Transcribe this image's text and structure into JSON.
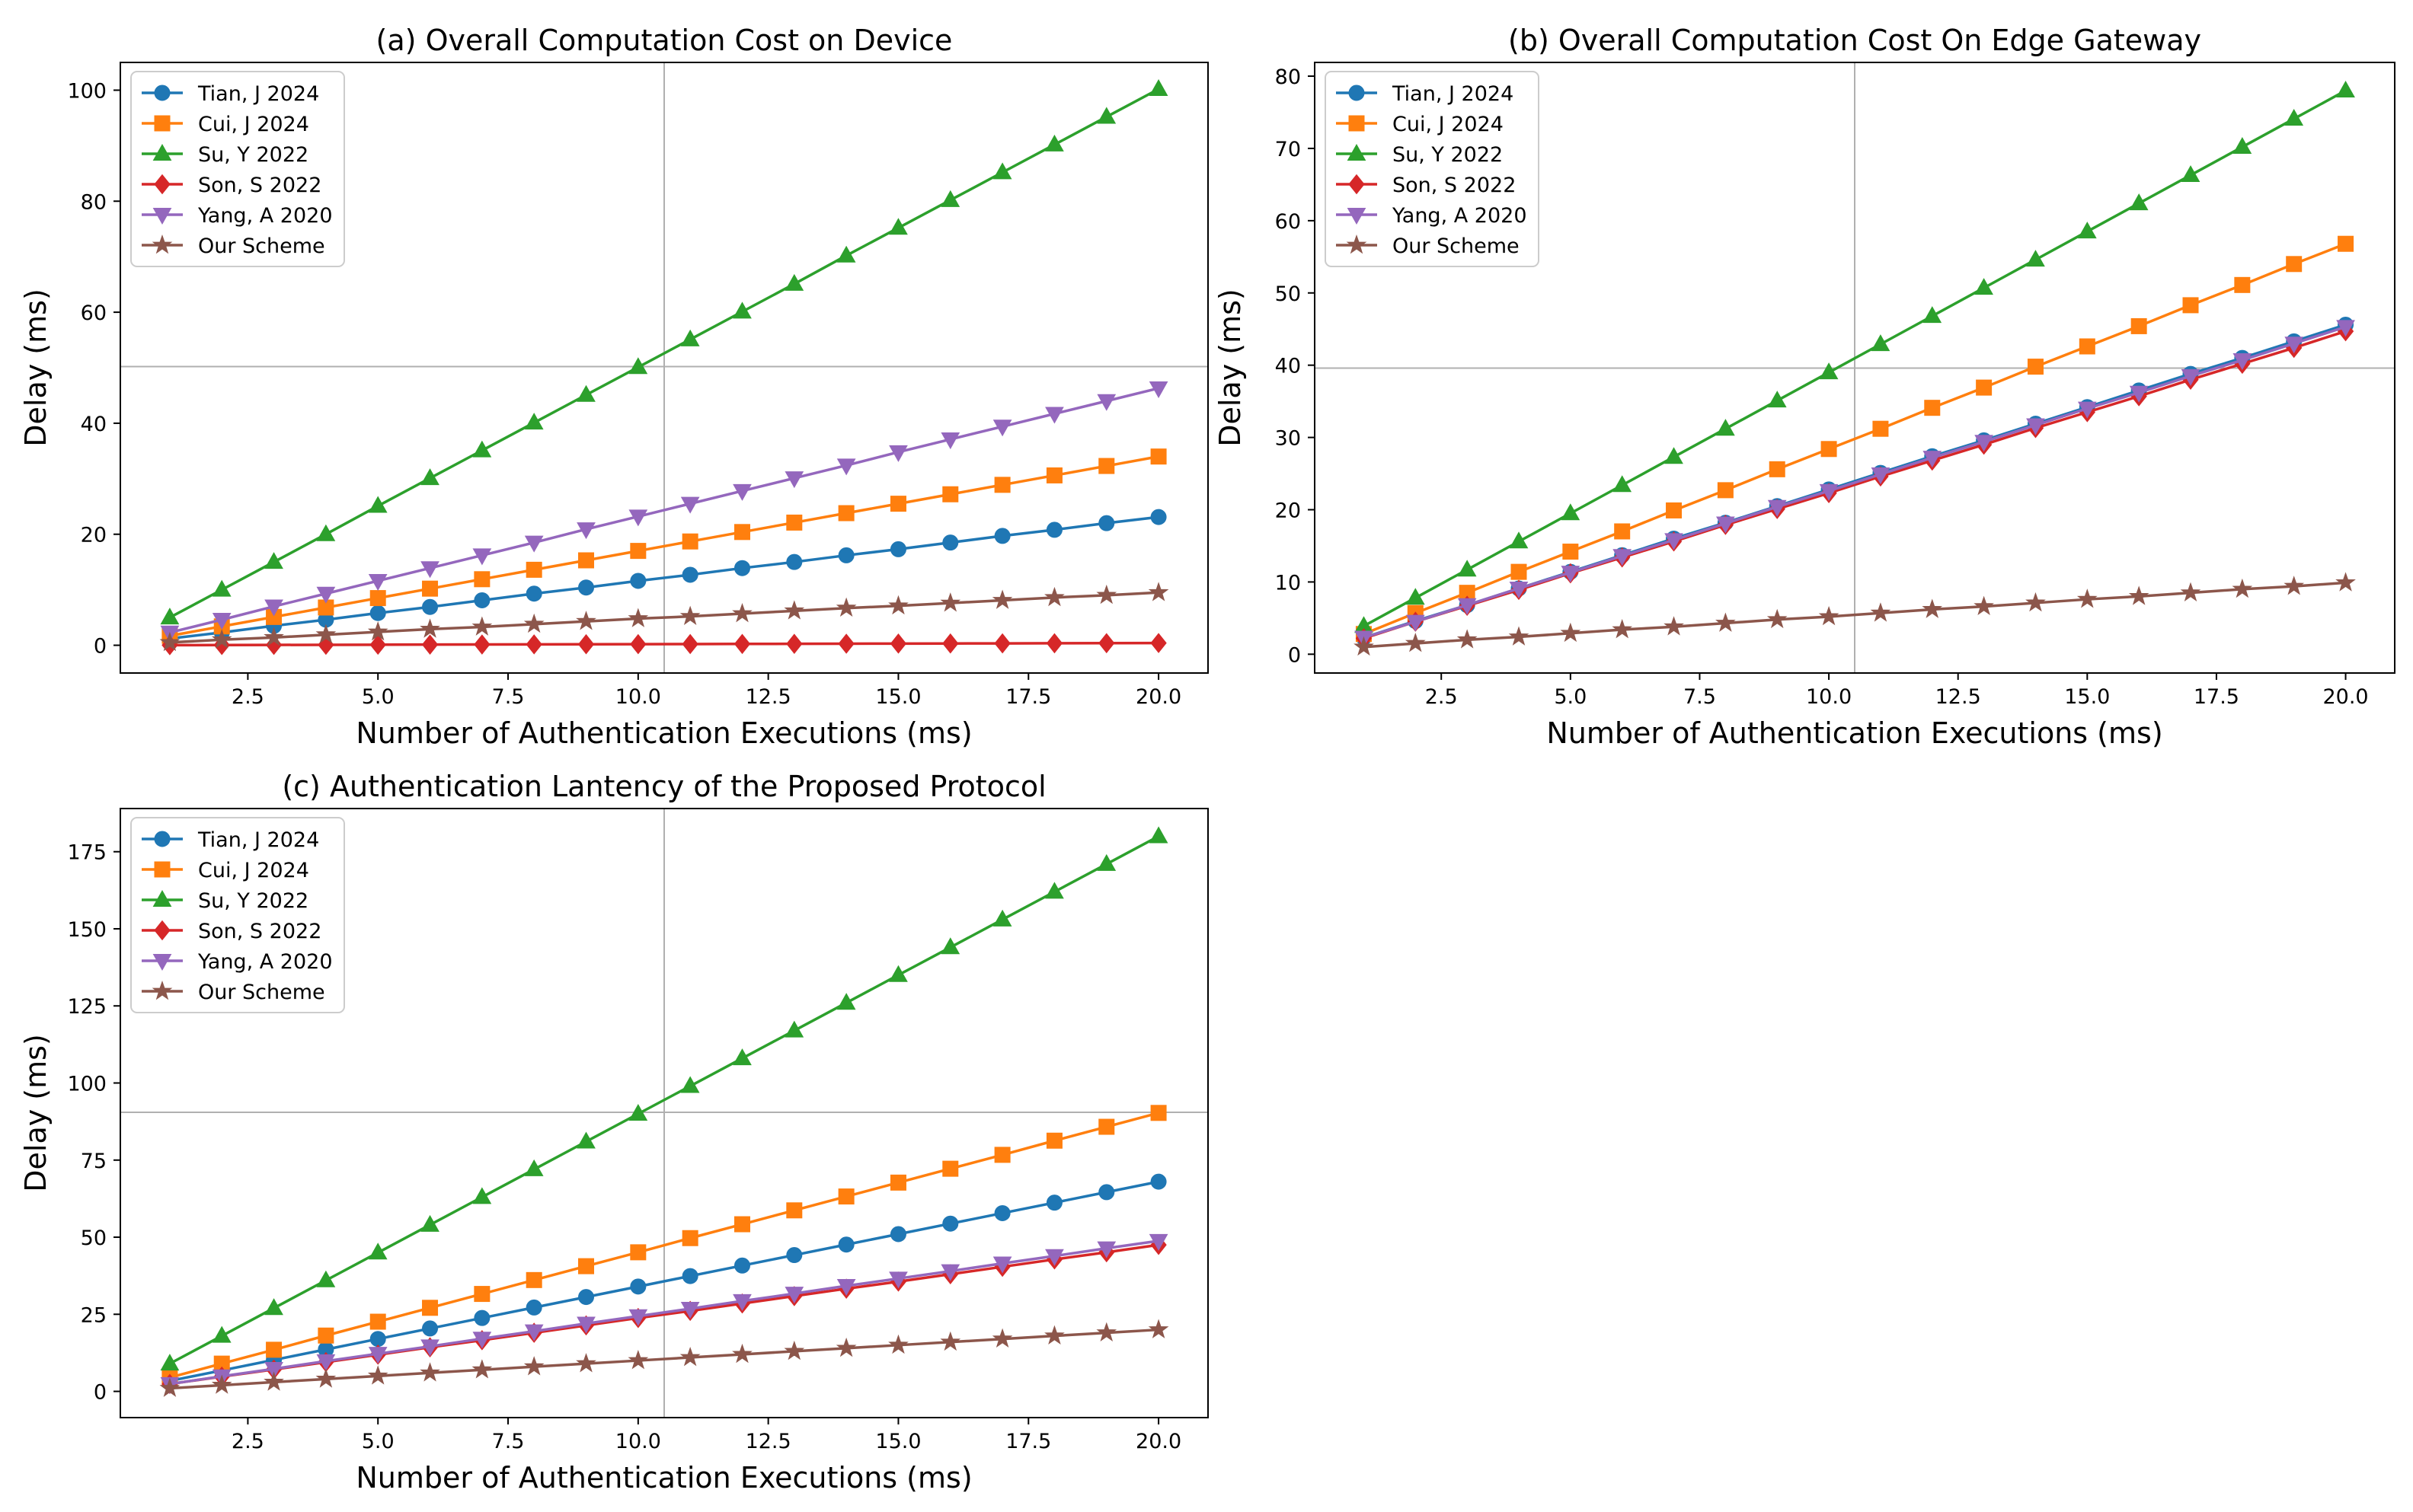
{
  "figure": {
    "layout": "2x2 grid, bottom-right empty"
  },
  "styles": {
    "Tian, J 2024": {
      "color": "#1f77b4",
      "marker": "circle"
    },
    "Cui, J 2024": {
      "color": "#ff7f0e",
      "marker": "square"
    },
    "Su, Y 2022": {
      "color": "#2ca02c",
      "marker": "triangle-up"
    },
    "Son, S 2022": {
      "color": "#d62728",
      "marker": "diamond"
    },
    "Yang, A 2020": {
      "color": "#9467bd",
      "marker": "triangle-down"
    },
    "Our Scheme": {
      "color": "#8c564b",
      "marker": "star"
    }
  },
  "chart_data": [
    {
      "type": "line",
      "title": "(a) Overall Computation Cost on Device",
      "xlabel": "Number of Authentication Executions (ms)",
      "ylabel": "Delay (ms)",
      "xlim": [
        0.05,
        20.95
      ],
      "ylim": [
        -5,
        105
      ],
      "xticks": [
        2.5,
        5.0,
        7.5,
        10.0,
        12.5,
        15.0,
        17.5,
        20.0
      ],
      "xtick_labels": [
        "2.5",
        "5.0",
        "7.5",
        "10.0",
        "12.5",
        "15.0",
        "17.5",
        "20.0"
      ],
      "yticks": [
        0,
        20,
        40,
        60,
        80,
        100
      ],
      "ytick_labels": [
        "0",
        "20",
        "40",
        "60",
        "80",
        "100"
      ],
      "crosshair": {
        "x": 10.5,
        "y": 50.2
      },
      "legend": "top-left",
      "x": [
        1,
        2,
        3,
        4,
        5,
        6,
        7,
        8,
        9,
        10,
        11,
        12,
        13,
        14,
        15,
        16,
        17,
        18,
        19,
        20
      ],
      "series": [
        {
          "name": "Tian, J 2024",
          "values": [
            1.2,
            2.3,
            3.5,
            4.6,
            5.8,
            6.9,
            8.1,
            9.3,
            10.4,
            11.6,
            12.7,
            13.9,
            15.0,
            16.2,
            17.3,
            18.5,
            19.7,
            20.8,
            22.0,
            23.1
          ]
        },
        {
          "name": "Cui, J 2024",
          "values": [
            1.7,
            3.4,
            5.1,
            6.8,
            8.5,
            10.2,
            11.9,
            13.6,
            15.3,
            17.0,
            18.7,
            20.4,
            22.1,
            23.8,
            25.5,
            27.2,
            28.9,
            30.6,
            32.3,
            34.0
          ]
        },
        {
          "name": "Su, Y 2022",
          "values": [
            5.0,
            10.0,
            15.0,
            20.0,
            25.1,
            30.1,
            35.1,
            40.1,
            45.1,
            50.1,
            55.1,
            60.1,
            65.1,
            70.2,
            75.2,
            80.2,
            85.2,
            90.2,
            95.2,
            100.2
          ]
        },
        {
          "name": "Son, S 2022",
          "values": [
            0.02,
            0.04,
            0.06,
            0.08,
            0.1,
            0.12,
            0.14,
            0.16,
            0.18,
            0.2,
            0.22,
            0.24,
            0.26,
            0.28,
            0.3,
            0.32,
            0.34,
            0.36,
            0.38,
            0.4
          ]
        },
        {
          "name": "Yang, A 2020",
          "values": [
            2.3,
            4.6,
            7.0,
            9.3,
            11.6,
            13.9,
            16.2,
            18.5,
            20.9,
            23.2,
            25.5,
            27.8,
            30.1,
            32.4,
            34.8,
            37.1,
            39.4,
            41.7,
            44.0,
            46.3
          ]
        },
        {
          "name": "Our Scheme",
          "values": [
            0.5,
            1.0,
            1.4,
            1.9,
            2.4,
            2.9,
            3.3,
            3.8,
            4.3,
            4.8,
            5.2,
            5.7,
            6.2,
            6.7,
            7.1,
            7.6,
            8.1,
            8.6,
            9.0,
            9.5
          ]
        }
      ]
    },
    {
      "type": "line",
      "title": "(b) Overall Computation Cost On Edge Gateway",
      "xlabel": "Number of Authentication Executions (ms)",
      "ylabel": "Delay (ms)",
      "xlim": [
        0.05,
        20.95
      ],
      "ylim": [
        -2.6,
        81.9
      ],
      "xticks": [
        2.5,
        5.0,
        7.5,
        10.0,
        12.5,
        15.0,
        17.5,
        20.0
      ],
      "xtick_labels": [
        "2.5",
        "5.0",
        "7.5",
        "10.0",
        "12.5",
        "15.0",
        "17.5",
        "20.0"
      ],
      "yticks": [
        0,
        10,
        20,
        30,
        40,
        50,
        60,
        70,
        80
      ],
      "ytick_labels": [
        "0",
        "10",
        "20",
        "30",
        "40",
        "50",
        "60",
        "70",
        "80"
      ],
      "crosshair": {
        "x": 10.5,
        "y": 39.6
      },
      "legend": "top-left",
      "x": [
        1,
        2,
        3,
        4,
        5,
        6,
        7,
        8,
        9,
        10,
        11,
        12,
        13,
        14,
        15,
        16,
        17,
        18,
        19,
        20
      ],
      "series": [
        {
          "name": "Tian, J 2024",
          "values": [
            2.3,
            4.6,
            6.8,
            9.1,
            11.4,
            13.7,
            16.0,
            18.2,
            20.5,
            22.8,
            25.1,
            27.4,
            29.6,
            31.9,
            34.2,
            36.5,
            38.8,
            41.0,
            43.3,
            45.6
          ]
        },
        {
          "name": "Cui, J 2024",
          "values": [
            2.8,
            5.7,
            8.5,
            11.4,
            14.2,
            17.0,
            19.9,
            22.7,
            25.6,
            28.4,
            31.2,
            34.1,
            36.9,
            39.8,
            42.6,
            45.4,
            48.3,
            51.1,
            54.0,
            56.8
          ]
        },
        {
          "name": "Su, Y 2022",
          "values": [
            3.9,
            7.8,
            11.7,
            15.6,
            19.5,
            23.4,
            27.3,
            31.2,
            35.1,
            39.0,
            42.9,
            46.8,
            50.7,
            54.6,
            58.5,
            62.4,
            66.3,
            70.2,
            74.1,
            78.0
          ]
        },
        {
          "name": "Son, S 2022",
          "values": [
            2.2,
            4.5,
            6.7,
            8.9,
            11.2,
            13.4,
            15.6,
            17.9,
            20.1,
            22.3,
            24.6,
            26.8,
            29.0,
            31.3,
            33.5,
            35.7,
            38.0,
            40.2,
            42.4,
            44.7
          ]
        },
        {
          "name": "Yang, A 2020",
          "values": [
            2.3,
            4.5,
            6.8,
            9.1,
            11.3,
            13.6,
            15.8,
            18.1,
            20.4,
            22.6,
            24.9,
            27.2,
            29.4,
            31.7,
            34.0,
            36.2,
            38.5,
            40.7,
            43.0,
            45.3
          ]
        },
        {
          "name": "Our Scheme",
          "values": [
            1.0,
            1.5,
            2.0,
            2.4,
            2.9,
            3.4,
            3.8,
            4.3,
            4.8,
            5.2,
            5.7,
            6.2,
            6.6,
            7.1,
            7.6,
            8.0,
            8.5,
            9.0,
            9.4,
            9.9
          ]
        }
      ]
    },
    {
      "type": "line",
      "title": "(c) Authentication Lantency of the Proposed Protocol",
      "xlabel": "Number of Authentication Executions (ms)",
      "ylabel": "Delay (ms)",
      "xlim": [
        0.05,
        20.95
      ],
      "ylim": [
        -8.5,
        189
      ],
      "xticks": [
        2.5,
        5.0,
        7.5,
        10.0,
        12.5,
        15.0,
        17.5,
        20.0
      ],
      "xtick_labels": [
        "2.5",
        "5.0",
        "7.5",
        "10.0",
        "12.5",
        "15.0",
        "17.5",
        "20.0"
      ],
      "yticks": [
        0,
        25,
        50,
        75,
        100,
        125,
        150,
        175
      ],
      "ytick_labels": [
        "0",
        "25",
        "50",
        "75",
        "100",
        "125",
        "150",
        "175"
      ],
      "crosshair": {
        "x": 10.5,
        "y": 90.5
      },
      "legend": "top-left",
      "x": [
        1,
        2,
        3,
        4,
        5,
        6,
        7,
        8,
        9,
        10,
        11,
        12,
        13,
        14,
        15,
        16,
        17,
        18,
        19,
        20
      ],
      "series": [
        {
          "name": "Tian, J 2024",
          "values": [
            3.4,
            6.8,
            10.2,
            13.6,
            17.0,
            20.4,
            23.8,
            27.2,
            30.6,
            34.0,
            37.4,
            40.8,
            44.2,
            47.6,
            51.0,
            54.4,
            57.8,
            61.2,
            64.6,
            68.0
          ]
        },
        {
          "name": "Cui, J 2024",
          "values": [
            4.5,
            9.0,
            13.5,
            18.1,
            22.6,
            27.1,
            31.6,
            36.1,
            40.6,
            45.1,
            49.7,
            54.2,
            58.7,
            63.2,
            67.7,
            72.2,
            76.7,
            81.3,
            85.8,
            90.3
          ]
        },
        {
          "name": "Su, Y 2022",
          "values": [
            9.0,
            18.0,
            27.0,
            36.0,
            45.0,
            54.0,
            63.0,
            72.0,
            81.0,
            90.0,
            99.0,
            108.0,
            117.0,
            126.0,
            135.0,
            144.0,
            153.0,
            162.0,
            171.0,
            180.0
          ]
        },
        {
          "name": "Son, S 2022",
          "values": [
            2.4,
            4.8,
            7.1,
            9.5,
            11.9,
            14.3,
            16.6,
            19.0,
            21.4,
            23.8,
            26.1,
            28.5,
            30.9,
            33.3,
            35.6,
            38.0,
            40.4,
            42.8,
            45.1,
            47.5
          ]
        },
        {
          "name": "Yang, A 2020",
          "values": [
            2.4,
            4.9,
            7.3,
            9.8,
            12.2,
            14.6,
            17.1,
            19.5,
            22.0,
            24.4,
            26.8,
            29.3,
            31.7,
            34.2,
            36.6,
            39.0,
            41.5,
            43.9,
            46.4,
            48.8
          ]
        },
        {
          "name": "Our Scheme",
          "values": [
            1.0,
            2.0,
            3.0,
            4.0,
            5.0,
            6.0,
            7.0,
            8.0,
            9.0,
            10.0,
            11.0,
            12.0,
            13.0,
            14.0,
            15.0,
            16.0,
            17.0,
            18.0,
            19.0,
            20.0
          ]
        }
      ]
    }
  ]
}
